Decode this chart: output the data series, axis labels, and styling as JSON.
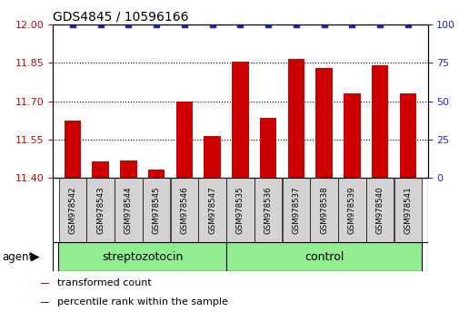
{
  "title": "GDS4845 / 10596166",
  "samples": [
    "GSM978542",
    "GSM978543",
    "GSM978544",
    "GSM978545",
    "GSM978546",
    "GSM978547",
    "GSM978535",
    "GSM978536",
    "GSM978537",
    "GSM978538",
    "GSM978539",
    "GSM978540",
    "GSM978541"
  ],
  "red_values": [
    11.625,
    11.465,
    11.47,
    11.435,
    11.7,
    11.565,
    11.855,
    11.635,
    11.865,
    11.83,
    11.73,
    11.84,
    11.73
  ],
  "blue_values": [
    100,
    100,
    100,
    100,
    100,
    100,
    100,
    100,
    100,
    100,
    100,
    100,
    100
  ],
  "groups": [
    {
      "label": "streptozotocin",
      "start": 0,
      "end": 6
    },
    {
      "label": "control",
      "start": 6,
      "end": 13
    }
  ],
  "ylim_left": [
    11.4,
    12.0
  ],
  "ylim_right": [
    0,
    100
  ],
  "yticks_left": [
    11.4,
    11.55,
    11.7,
    11.85,
    12.0
  ],
  "yticks_right": [
    0,
    25,
    50,
    75,
    100
  ],
  "bar_color": "#CC0000",
  "dot_color": "#2222CC",
  "bar_width": 0.6,
  "agent_label": "agent",
  "group_color": "#90EE90",
  "legend_items": [
    {
      "color": "#CC0000",
      "label": "transformed count"
    },
    {
      "color": "#2222CC",
      "label": "percentile rank within the sample"
    }
  ],
  "tick_label_color_left": "#CC0000",
  "tick_label_color_right": "#2222CC",
  "base_value": 11.4
}
